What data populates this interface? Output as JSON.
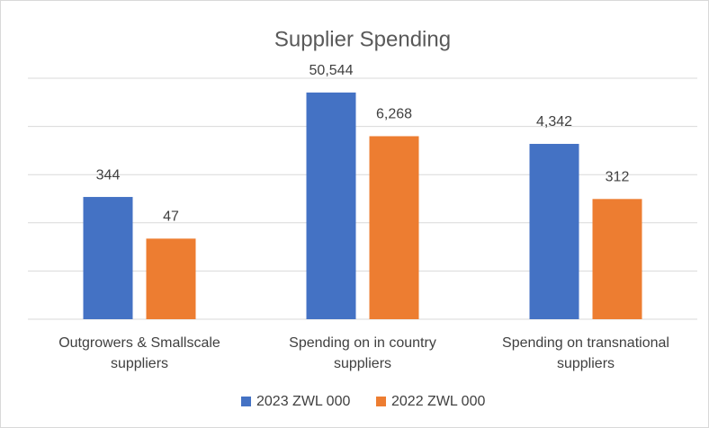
{
  "chart_data": {
    "type": "bar",
    "title": "Supplier Spending",
    "categories": [
      "Outgrowers & Smallscale suppliers",
      "Spending on in country suppliers",
      "Spending on transnational suppliers"
    ],
    "series": [
      {
        "name": "2023 ZWL 000",
        "color": "#4472c4",
        "values": [
          344,
          50544,
          4342
        ],
        "value_labels": [
          "344",
          "50,544",
          "4,342"
        ]
      },
      {
        "name": "2022 ZWL 000",
        "color": "#ed7d31",
        "values": [
          47,
          6268,
          312
        ],
        "value_labels": [
          "47",
          "6,268",
          "312"
        ]
      }
    ],
    "log_scale": true,
    "ylim": [
      1,
      100000
    ],
    "yticks": [
      1,
      10,
      100,
      1000,
      10000,
      100000
    ],
    "grid": true,
    "legend": "bottom"
  }
}
